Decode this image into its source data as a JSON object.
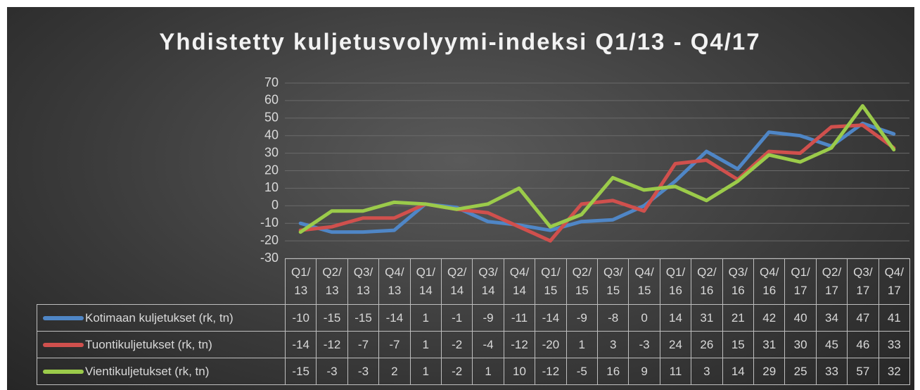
{
  "chart_data": {
    "type": "line",
    "title": "Yhdistetty kuljetusvolyymi-indeksi Q1/13 - Q4/17",
    "categories": [
      "Q1/13",
      "Q2/13",
      "Q3/13",
      "Q4/13",
      "Q1/14",
      "Q2/14",
      "Q3/14",
      "Q4/14",
      "Q1/15",
      "Q2/15",
      "Q3/15",
      "Q4/15",
      "Q1/16",
      "Q2/16",
      "Q3/16",
      "Q4/16",
      "Q1/17",
      "Q2/17",
      "Q3/17",
      "Q4/17"
    ],
    "series": [
      {
        "name": "Kotimaan kuljetukset (rk, tn)",
        "color": "#4f86c6",
        "values": [
          -10,
          -15,
          -15,
          -14,
          1,
          -1,
          -9,
          -11,
          -14,
          -9,
          -8,
          0,
          14,
          31,
          21,
          42,
          40,
          34,
          47,
          41
        ]
      },
      {
        "name": "Tuontikuljetukset (rk, tn)",
        "color": "#d0504d",
        "values": [
          -14,
          -12,
          -7,
          -7,
          1,
          -2,
          -4,
          -12,
          -20,
          1,
          3,
          -3,
          24,
          26,
          15,
          31,
          30,
          45,
          46,
          33
        ]
      },
      {
        "name": "Vientikuljetukset (rk, tn)",
        "color": "#9bcb4a",
        "values": [
          -15,
          -3,
          -3,
          2,
          1,
          -2,
          1,
          10,
          -12,
          -5,
          16,
          9,
          11,
          3,
          14,
          29,
          25,
          33,
          57,
          32
        ]
      }
    ],
    "ylim": [
      -30,
      70
    ],
    "yticks": [
      -30,
      -20,
      -10,
      0,
      10,
      20,
      30,
      40,
      50,
      60,
      70
    ],
    "grid": true
  }
}
